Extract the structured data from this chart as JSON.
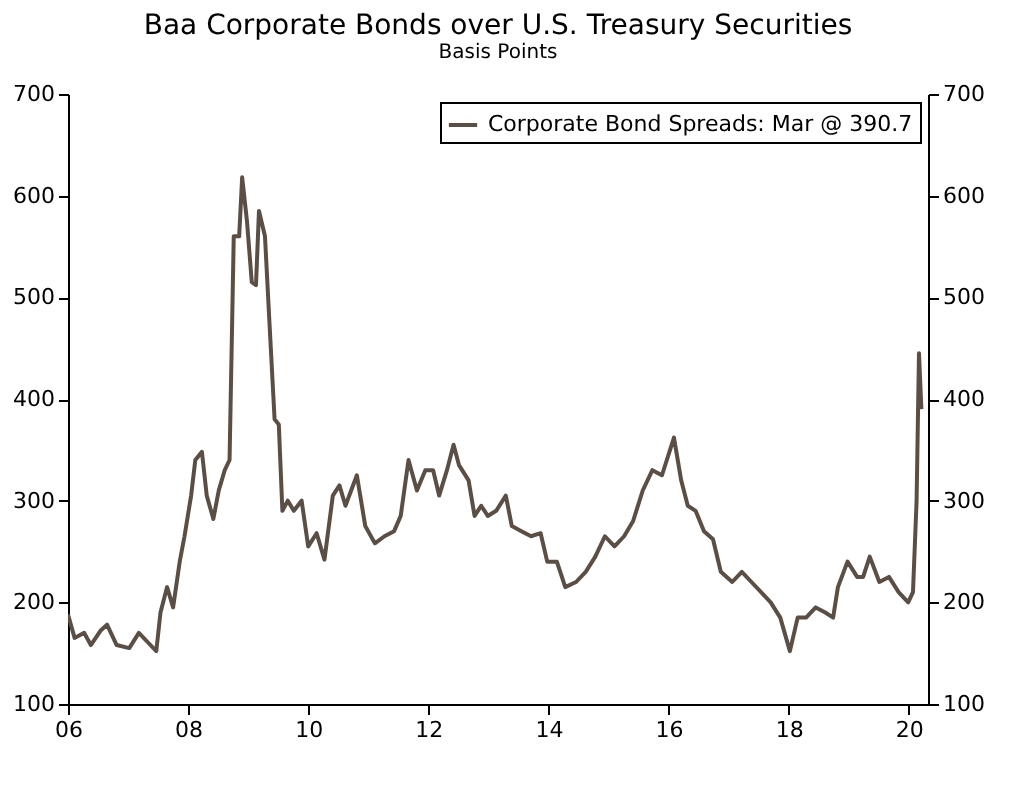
{
  "chart_data": {
    "type": "line",
    "title": "Baa Corporate Bonds over U.S. Treasury Securities",
    "subtitle": "Basis Points",
    "x": [
      2006.0,
      2006.11,
      2006.27,
      2006.38,
      2006.54,
      2006.65,
      2006.81,
      2007.02,
      2007.18,
      2007.34,
      2007.47,
      2007.54,
      2007.65,
      2007.75,
      2007.86,
      2007.94,
      2008.05,
      2008.12,
      2008.23,
      2008.31,
      2008.42,
      2008.51,
      2008.61,
      2008.69,
      2008.76,
      2008.85,
      2008.9,
      2008.98,
      2009.06,
      2009.13,
      2009.18,
      2009.28,
      2009.35,
      2009.44,
      2009.51,
      2009.57,
      2009.66,
      2009.76,
      2009.89,
      2010.0,
      2010.14,
      2010.27,
      2010.41,
      2010.52,
      2010.62,
      2010.81,
      2010.95,
      2011.11,
      2011.27,
      2011.43,
      2011.54,
      2011.67,
      2011.81,
      2011.95,
      2012.08,
      2012.18,
      2012.31,
      2012.42,
      2012.51,
      2012.67,
      2012.77,
      2012.88,
      2012.99,
      2013.13,
      2013.29,
      2013.39,
      2013.55,
      2013.71,
      2013.87,
      2013.98,
      2014.14,
      2014.28,
      2014.46,
      2014.62,
      2014.78,
      2014.94,
      2015.1,
      2015.26,
      2015.41,
      2015.57,
      2015.73,
      2015.89,
      2016.09,
      2016.21,
      2016.32,
      2016.45,
      2016.59,
      2016.74,
      2016.87,
      2017.06,
      2017.22,
      2017.38,
      2017.54,
      2017.7,
      2017.86,
      2018.02,
      2018.15,
      2018.29,
      2018.45,
      2018.61,
      2018.74,
      2018.82,
      2018.98,
      2019.14,
      2019.24,
      2019.35,
      2019.51,
      2019.67,
      2019.83,
      2019.99,
      2020.07,
      2020.13,
      2020.17,
      2020.21
    ],
    "series": [
      {
        "name": "Corporate Bond Spreads: Mar @ 390.7",
        "color": "#5b4f45",
        "values": [
          188,
          165,
          170,
          158,
          172,
          178,
          158,
          155,
          170,
          160,
          152,
          190,
          215,
          195,
          240,
          265,
          305,
          340,
          348,
          305,
          282,
          310,
          330,
          340,
          560,
          560,
          618,
          575,
          515,
          512,
          585,
          560,
          480,
          380,
          375,
          290,
          300,
          290,
          300,
          255,
          268,
          242,
          305,
          315,
          295,
          325,
          275,
          258,
          265,
          270,
          285,
          340,
          310,
          330,
          330,
          305,
          330,
          355,
          335,
          320,
          285,
          295,
          285,
          290,
          305,
          275,
          270,
          265,
          268,
          240,
          240,
          215,
          220,
          230,
          245,
          265,
          255,
          265,
          280,
          310,
          330,
          325,
          362,
          320,
          295,
          290,
          270,
          262,
          230,
          220,
          230,
          220,
          210,
          200,
          185,
          152,
          185,
          185,
          195,
          190,
          185,
          215,
          240,
          225,
          225,
          245,
          220,
          225,
          210,
          200,
          210,
          300,
          445,
          390
        ]
      }
    ],
    "xlim": [
      2006,
      2020.32
    ],
    "xticks": [
      {
        "value": 2006,
        "label": "06"
      },
      {
        "value": 2008,
        "label": "08"
      },
      {
        "value": 2010,
        "label": "10"
      },
      {
        "value": 2012,
        "label": "12"
      },
      {
        "value": 2014,
        "label": "14"
      },
      {
        "value": 2016,
        "label": "16"
      },
      {
        "value": 2018,
        "label": "18"
      },
      {
        "value": 2020,
        "label": "20"
      }
    ],
    "ylim": [
      100,
      700
    ],
    "yticks": [
      100,
      200,
      300,
      400,
      500,
      600,
      700
    ],
    "y2lim": [
      100,
      700
    ],
    "y2ticks": [
      100,
      200,
      300,
      400,
      500,
      600,
      700
    ],
    "legend": "top right",
    "grid": false,
    "line_style": "solid",
    "marker": "none"
  }
}
